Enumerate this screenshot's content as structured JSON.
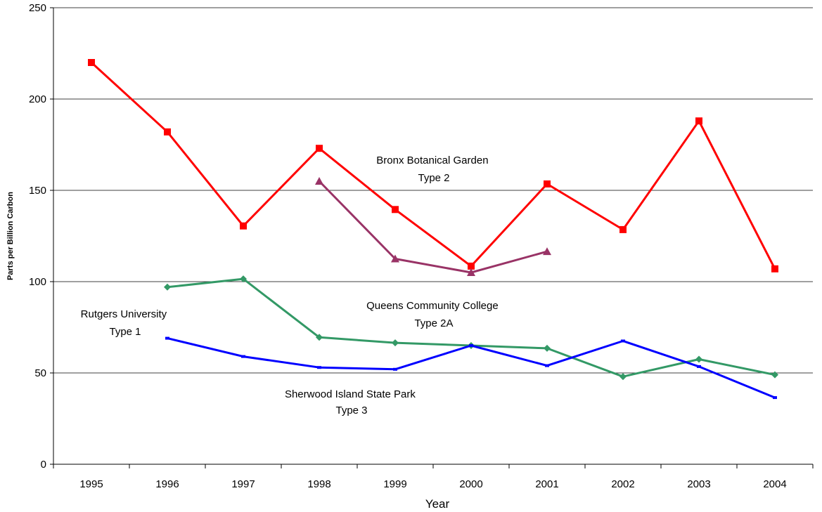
{
  "chart_data": {
    "type": "line",
    "title": "",
    "xlabel": "Year",
    "ylabel": "Parts per Billion Carbon",
    "categories": [
      "1995",
      "1996",
      "1997",
      "1998",
      "1999",
      "2000",
      "2001",
      "2002",
      "2003",
      "2004"
    ],
    "ylim": [
      0,
      250
    ],
    "yticks": [
      "0",
      "50",
      "100",
      "150",
      "200",
      "250"
    ],
    "grid": true,
    "legend": "none",
    "series": [
      {
        "name": "Bronx Botanical Garden Type 2",
        "color": "#ff0000",
        "marker": "square",
        "values": [
          220,
          182,
          130.5,
          173,
          139.5,
          108.5,
          153.5,
          128.5,
          188,
          107
        ]
      },
      {
        "name": "",
        "color": "#993366",
        "marker": "triangle",
        "values": [
          null,
          null,
          null,
          155,
          112.5,
          105,
          116.5,
          null,
          null,
          null
        ]
      },
      {
        "name": "Queens Community College Type 2A",
        "color": "#339966",
        "marker": "diamond",
        "values": [
          null,
          97,
          101.5,
          69.5,
          66.5,
          65,
          63.5,
          48,
          57.5,
          49
        ]
      },
      {
        "name": "Rutgers University Type 1",
        "color": "#0000ff",
        "marker": "dash",
        "values": [
          null,
          69,
          59,
          53,
          52,
          65,
          54,
          67.5,
          53.5,
          36.5
        ]
      }
    ],
    "annotations": [
      {
        "lines": [
          "Bronx  Botanical Garden",
          "Type 2"
        ]
      },
      {
        "lines": [
          "Queens Community College",
          "Type 2A"
        ]
      },
      {
        "lines": [
          "Rutgers University",
          "Type 1"
        ]
      },
      {
        "lines": [
          "Sherwood Island State Park",
          "Type 3"
        ]
      }
    ]
  }
}
